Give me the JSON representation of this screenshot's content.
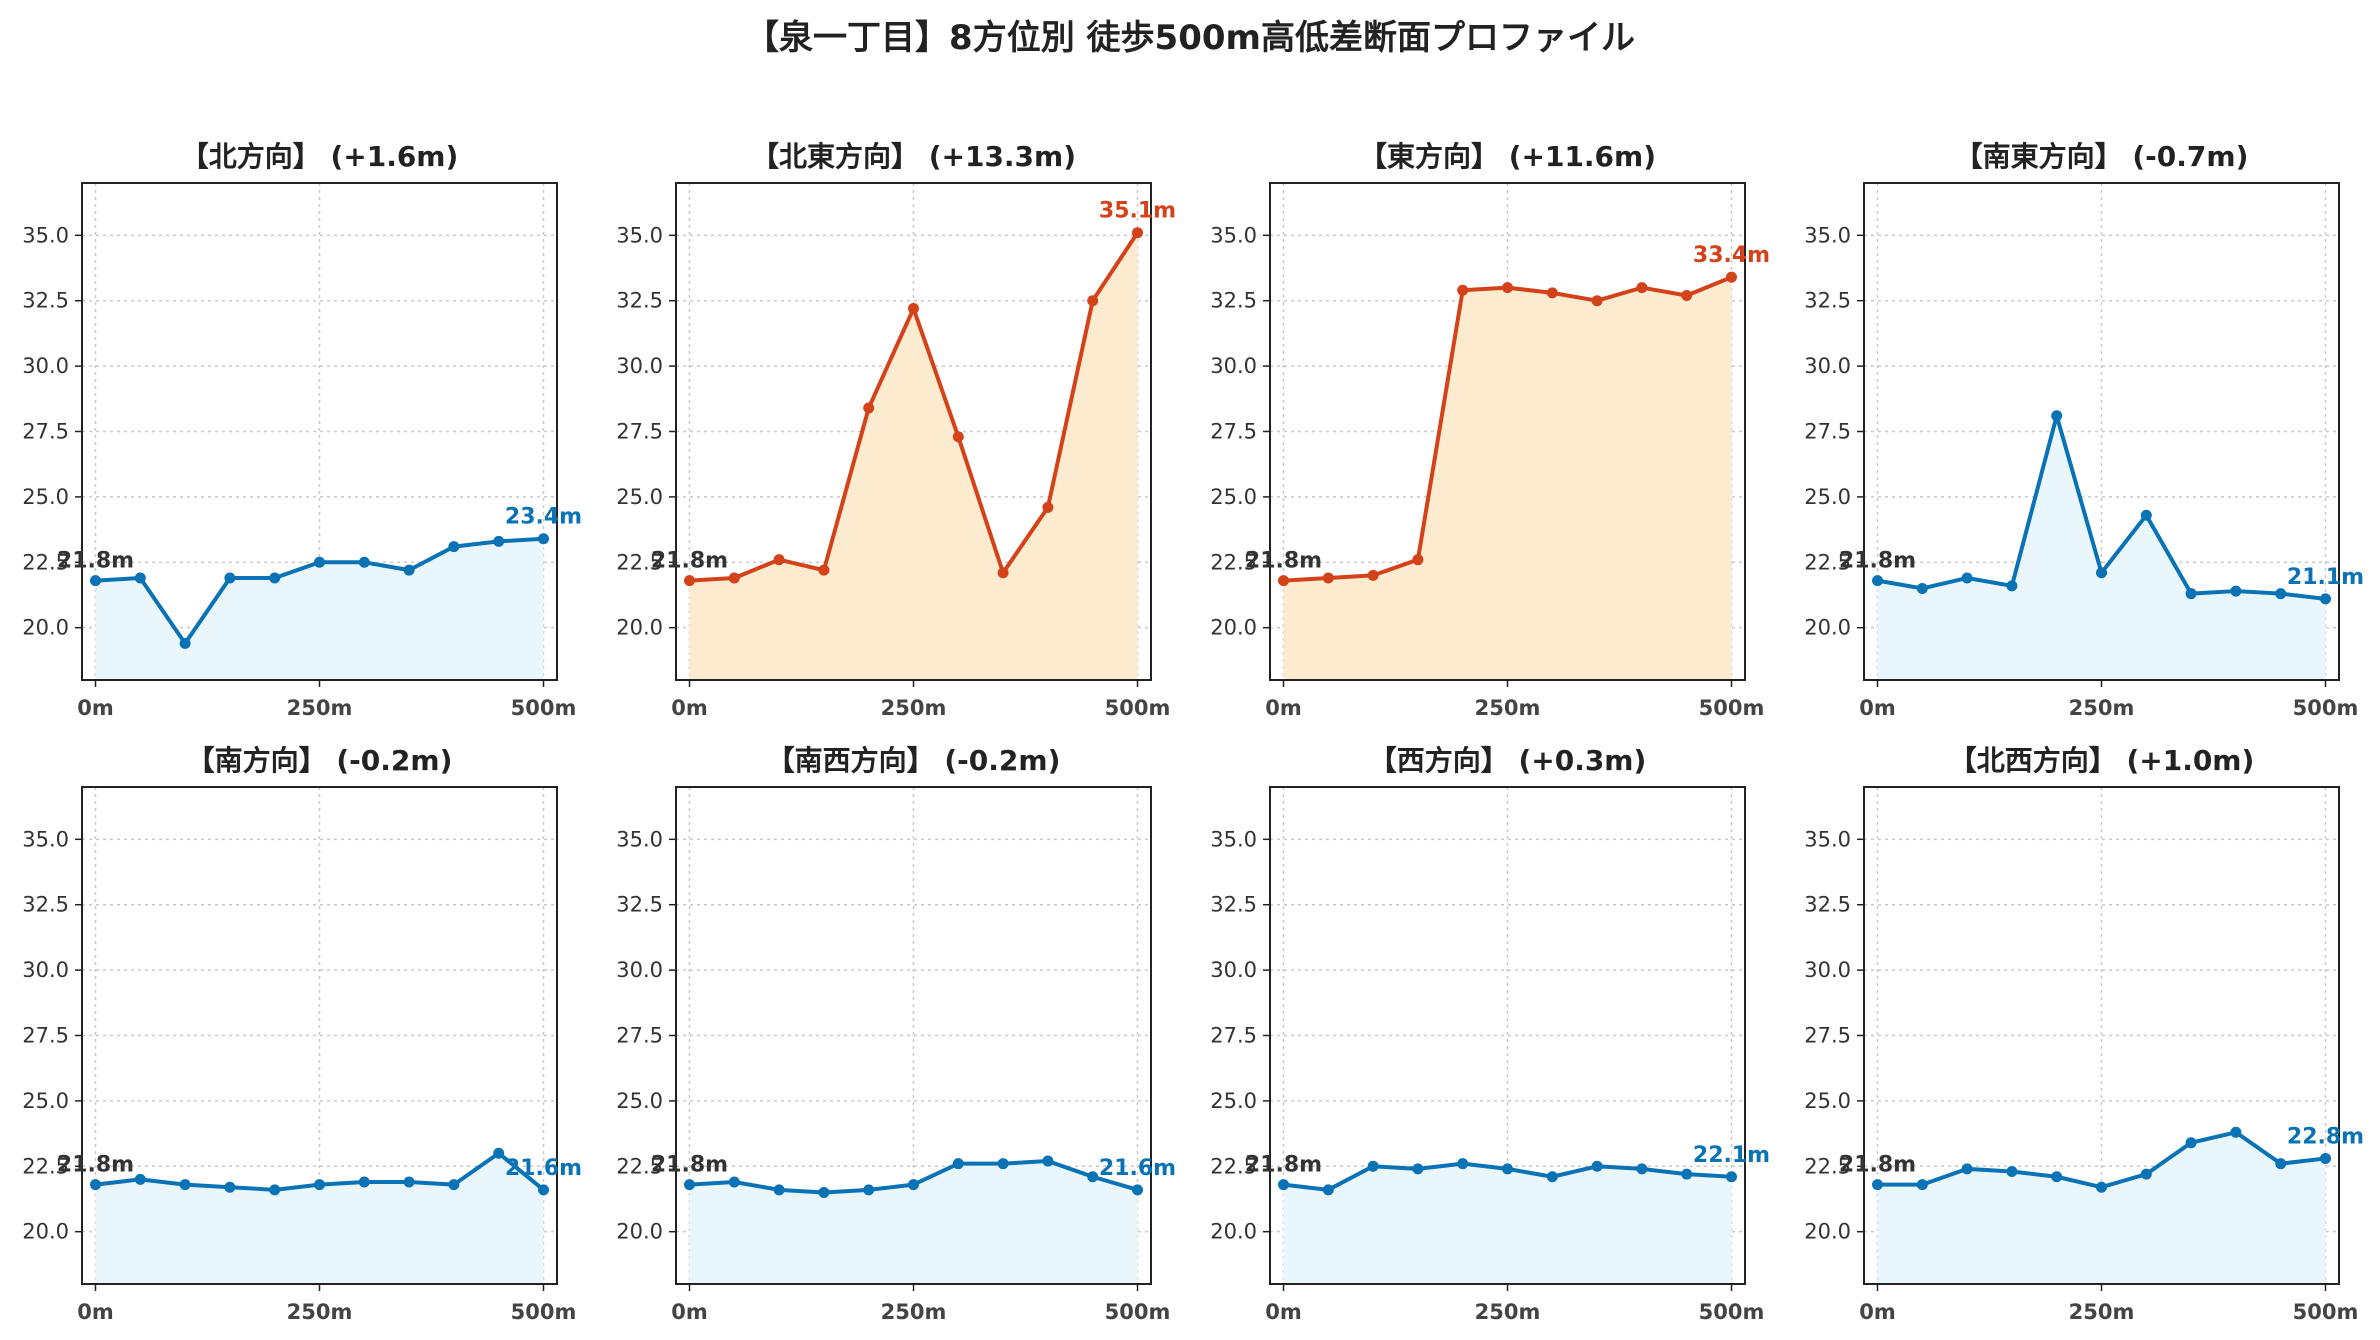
{
  "title": "【泉一丁目】8方位別 徒歩500m高低差断面プロファイル",
  "colors": {
    "up_line": "#d4421a",
    "up_fill": "#fdebd0",
    "flat_line": "#0a73b5",
    "flat_fill": "#e9f6fc",
    "start_label": "#333333",
    "grid": "#c9c9c9"
  },
  "chart_data": [
    {
      "type": "area",
      "title": "【北方向】 (+1.6m)",
      "trend": "flat",
      "x": [
        0,
        50,
        100,
        150,
        200,
        250,
        300,
        350,
        400,
        450,
        500
      ],
      "values": [
        21.8,
        21.9,
        19.4,
        21.9,
        21.9,
        22.5,
        22.5,
        22.2,
        23.1,
        23.3,
        23.4
      ],
      "start_label": "21.8m",
      "end_label": "23.4m",
      "xticks": [
        "0m",
        "250m",
        "500m"
      ],
      "yticks": [
        "20.0",
        "22.5",
        "25.0",
        "27.5",
        "30.0",
        "32.5",
        "35.0"
      ],
      "ylim": [
        18,
        37
      ],
      "grid": true
    },
    {
      "type": "area",
      "title": "【北東方向】 (+13.3m)",
      "trend": "up",
      "x": [
        0,
        50,
        100,
        150,
        200,
        250,
        300,
        350,
        400,
        450,
        500
      ],
      "values": [
        21.8,
        21.9,
        22.6,
        22.2,
        28.4,
        32.2,
        27.3,
        22.1,
        24.6,
        32.5,
        35.1
      ],
      "start_label": "21.8m",
      "end_label": "35.1m",
      "xticks": [
        "0m",
        "250m",
        "500m"
      ],
      "yticks": [
        "20.0",
        "22.5",
        "25.0",
        "27.5",
        "30.0",
        "32.5",
        "35.0"
      ],
      "ylim": [
        18,
        37
      ],
      "grid": true
    },
    {
      "type": "area",
      "title": "【東方向】 (+11.6m)",
      "trend": "up",
      "x": [
        0,
        50,
        100,
        150,
        200,
        250,
        300,
        350,
        400,
        450,
        500
      ],
      "values": [
        21.8,
        21.9,
        22.0,
        22.6,
        32.9,
        33.0,
        32.8,
        32.5,
        33.0,
        32.7,
        33.4
      ],
      "start_label": "21.8m",
      "end_label": "33.4m",
      "xticks": [
        "0m",
        "250m",
        "500m"
      ],
      "yticks": [
        "20.0",
        "22.5",
        "25.0",
        "27.5",
        "30.0",
        "32.5",
        "35.0"
      ],
      "ylim": [
        18,
        37
      ],
      "grid": true
    },
    {
      "type": "area",
      "title": "【南東方向】 (-0.7m)",
      "trend": "flat",
      "x": [
        0,
        50,
        100,
        150,
        200,
        250,
        300,
        350,
        400,
        450,
        500
      ],
      "values": [
        21.8,
        21.5,
        21.9,
        21.6,
        28.1,
        22.1,
        24.3,
        21.3,
        21.4,
        21.3,
        21.1
      ],
      "start_label": "21.8m",
      "end_label": "21.1m",
      "xticks": [
        "0m",
        "250m",
        "500m"
      ],
      "yticks": [
        "20.0",
        "22.5",
        "25.0",
        "27.5",
        "30.0",
        "32.5",
        "35.0"
      ],
      "ylim": [
        18,
        37
      ],
      "grid": true
    },
    {
      "type": "area",
      "title": "【南方向】 (-0.2m)",
      "trend": "flat",
      "x": [
        0,
        50,
        100,
        150,
        200,
        250,
        300,
        350,
        400,
        450,
        500
      ],
      "values": [
        21.8,
        22.0,
        21.8,
        21.7,
        21.6,
        21.8,
        21.9,
        21.9,
        21.8,
        23.0,
        21.6
      ],
      "start_label": "21.8m",
      "end_label": "21.6m",
      "xticks": [
        "0m",
        "250m",
        "500m"
      ],
      "yticks": [
        "20.0",
        "22.5",
        "25.0",
        "27.5",
        "30.0",
        "32.5",
        "35.0"
      ],
      "ylim": [
        18,
        37
      ],
      "grid": true
    },
    {
      "type": "area",
      "title": "【南西方向】 (-0.2m)",
      "trend": "flat",
      "x": [
        0,
        50,
        100,
        150,
        200,
        250,
        300,
        350,
        400,
        450,
        500
      ],
      "values": [
        21.8,
        21.9,
        21.6,
        21.5,
        21.6,
        21.8,
        22.6,
        22.6,
        22.7,
        22.1,
        21.6
      ],
      "start_label": "21.8m",
      "end_label": "21.6m",
      "xticks": [
        "0m",
        "250m",
        "500m"
      ],
      "yticks": [
        "20.0",
        "22.5",
        "25.0",
        "27.5",
        "30.0",
        "32.5",
        "35.0"
      ],
      "ylim": [
        18,
        37
      ],
      "grid": true
    },
    {
      "type": "area",
      "title": "【西方向】 (+0.3m)",
      "trend": "flat",
      "x": [
        0,
        50,
        100,
        150,
        200,
        250,
        300,
        350,
        400,
        450,
        500
      ],
      "values": [
        21.8,
        21.6,
        22.5,
        22.4,
        22.6,
        22.4,
        22.1,
        22.5,
        22.4,
        22.2,
        22.1
      ],
      "start_label": "21.8m",
      "end_label": "22.1m",
      "xticks": [
        "0m",
        "250m",
        "500m"
      ],
      "yticks": [
        "20.0",
        "22.5",
        "25.0",
        "27.5",
        "30.0",
        "32.5",
        "35.0"
      ],
      "ylim": [
        18,
        37
      ],
      "grid": true
    },
    {
      "type": "area",
      "title": "【北西方向】 (+1.0m)",
      "trend": "flat",
      "x": [
        0,
        50,
        100,
        150,
        200,
        250,
        300,
        350,
        400,
        450,
        500
      ],
      "values": [
        21.8,
        21.8,
        22.4,
        22.3,
        22.1,
        21.7,
        22.2,
        23.4,
        23.8,
        22.6,
        22.8
      ],
      "start_label": "21.8m",
      "end_label": "22.8m",
      "xticks": [
        "0m",
        "250m",
        "500m"
      ],
      "yticks": [
        "20.0",
        "22.5",
        "25.0",
        "27.5",
        "30.0",
        "32.5",
        "35.0"
      ],
      "ylim": [
        18,
        37
      ],
      "grid": true
    }
  ]
}
